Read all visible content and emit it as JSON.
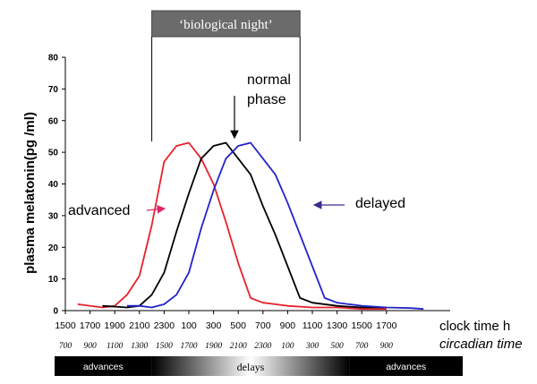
{
  "chart_data": {
    "type": "line",
    "ylabel": "plasma melatonin(pg /ml)",
    "ylim": [
      0,
      80
    ],
    "yticks": [
      "0",
      "10",
      "20",
      "30",
      "40",
      "50",
      "60",
      "70",
      "80"
    ],
    "xlabel": "clock time h",
    "xlabel2": "circadian time",
    "xlim": [
      0,
      15
    ],
    "clock_ticks": [
      "1500",
      "1700",
      "1900",
      "2100",
      "2300",
      "100",
      "300",
      "500",
      "700",
      "900",
      "1100",
      "1300",
      "1500",
      "1700"
    ],
    "circadian_ticks": [
      "700",
      "900",
      "1100",
      "1300",
      "1500",
      "1700",
      "1900",
      "2100",
      "2300",
      "100",
      "300",
      "500",
      "700",
      "900"
    ],
    "night_label": "‘biological night’",
    "night_range": [
      3.5,
      9.5
    ],
    "bar_labels": {
      "left": "advances",
      "middle": "delays",
      "right": "advances"
    },
    "bar_range": [
      0,
      15
    ],
    "annotations": {
      "normal": [
        "normal",
        "phase"
      ],
      "advanced": "advanced",
      "delayed": "delayed"
    },
    "series": [
      {
        "key": "advanced",
        "color": "#e8212a",
        "x": [
          0.5,
          1.5,
          2.0,
          2.5,
          3.0,
          3.5,
          4.0,
          4.5,
          5.0,
          5.5,
          6.0,
          6.5,
          7.0,
          7.5,
          8.0,
          8.5,
          9.0,
          10.0,
          11.0,
          12.0,
          13.0
        ],
        "y": [
          2,
          1,
          1.5,
          5,
          11,
          27,
          47,
          52,
          53,
          48,
          40,
          28,
          15,
          4,
          2.5,
          2,
          1.5,
          1,
          1,
          0.5,
          0.5
        ]
      },
      {
        "key": "normal",
        "color": "#000000",
        "x": [
          1.5,
          2.5,
          3.0,
          3.5,
          4.0,
          4.5,
          5.0,
          5.5,
          6.0,
          6.5,
          7.0,
          7.5,
          8.0,
          8.5,
          9.0,
          9.5,
          10.0,
          11.0,
          12.0,
          13.0
        ],
        "y": [
          1.5,
          1,
          1.5,
          5,
          12,
          25,
          37,
          48,
          52,
          53,
          48,
          43,
          33,
          24,
          14,
          4,
          2.5,
          1.5,
          1,
          1
        ]
      },
      {
        "key": "delayed",
        "color": "#2323c8",
        "x": [
          2.5,
          3.0,
          3.5,
          4.0,
          4.5,
          5.0,
          5.5,
          6.0,
          6.5,
          7.0,
          7.5,
          8.0,
          8.5,
          9.0,
          9.5,
          10.0,
          10.5,
          11.0,
          12.0,
          13.0,
          14.0,
          14.5
        ],
        "y": [
          1.5,
          1.5,
          1,
          2,
          5,
          12,
          26,
          38,
          48,
          52,
          53,
          48,
          43,
          34,
          24,
          14,
          4,
          2.5,
          1.5,
          1,
          0.8,
          0.5
        ]
      }
    ]
  }
}
